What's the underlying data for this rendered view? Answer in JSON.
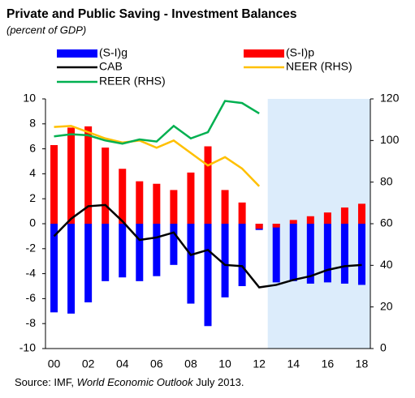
{
  "chart_data": {
    "type": "bar",
    "title": "Private and Public Saving - Investment Balances",
    "subtitle": "(percent of GDP)",
    "source": [
      "Source: IMF, ",
      "World Economic Outlook",
      " July 2013."
    ],
    "categories": [
      "00",
      null,
      "02",
      null,
      "04",
      null,
      "06",
      null,
      "08",
      null,
      "10",
      null,
      "12",
      null,
      "14",
      null,
      "16",
      null,
      "18"
    ],
    "series": [
      {
        "name": "(S-I)g",
        "type": "bar",
        "color": "#0000ff",
        "values": [
          -7.1,
          -7.2,
          -6.3,
          -4.6,
          -4.3,
          -4.6,
          -4.2,
          -3.3,
          -6.4,
          -8.2,
          -5.9,
          -5.0,
          -0.5,
          -4.7,
          -4.6,
          -4.8,
          -4.7,
          -4.8,
          -4.9
        ]
      },
      {
        "name": "(S-I)p",
        "type": "bar",
        "color": "#ff0000",
        "values": [
          6.3,
          7.7,
          7.8,
          6.1,
          4.4,
          3.4,
          3.2,
          2.7,
          4.1,
          6.2,
          2.7,
          1.7,
          -0.4,
          -0.3,
          0.3,
          0.6,
          0.9,
          1.3,
          1.6
        ]
      },
      {
        "name": "CAB",
        "type": "line",
        "color": "#000000",
        "values": [
          -1.0,
          0.4,
          1.4,
          1.5,
          0.2,
          -1.3,
          -1.1,
          -0.7,
          -2.5,
          -2.1,
          -3.3,
          -3.4,
          -5.1,
          -4.9,
          -4.5,
          -4.2,
          -3.7,
          -3.4,
          -3.3
        ]
      },
      {
        "name": "NEER (RHS)",
        "type": "line",
        "axis": "y2",
        "color": "#ffc000",
        "values": [
          106.5,
          107,
          104,
          101,
          99,
          100,
          96.5,
          100,
          94,
          88,
          92,
          86.5,
          78,
          null,
          null,
          null,
          null,
          null,
          null
        ]
      },
      {
        "name": "REER (RHS)",
        "type": "line",
        "axis": "y2",
        "color": "#00b050",
        "values": [
          102,
          103,
          102.5,
          100,
          98.5,
          100.5,
          99.5,
          107,
          101,
          104,
          119,
          118,
          113,
          null,
          null,
          null,
          null,
          null,
          null
        ]
      }
    ],
    "ylim": [
      -10,
      10
    ],
    "yticks": [
      -10,
      -8,
      -6,
      -4,
      -2,
      0,
      2,
      4,
      6,
      8,
      10
    ],
    "y2lim": [
      0,
      120
    ],
    "y2ticks": [
      0,
      20,
      40,
      60,
      80,
      100,
      120
    ],
    "projection_from": 13,
    "projection_color": "#dcecfb"
  }
}
